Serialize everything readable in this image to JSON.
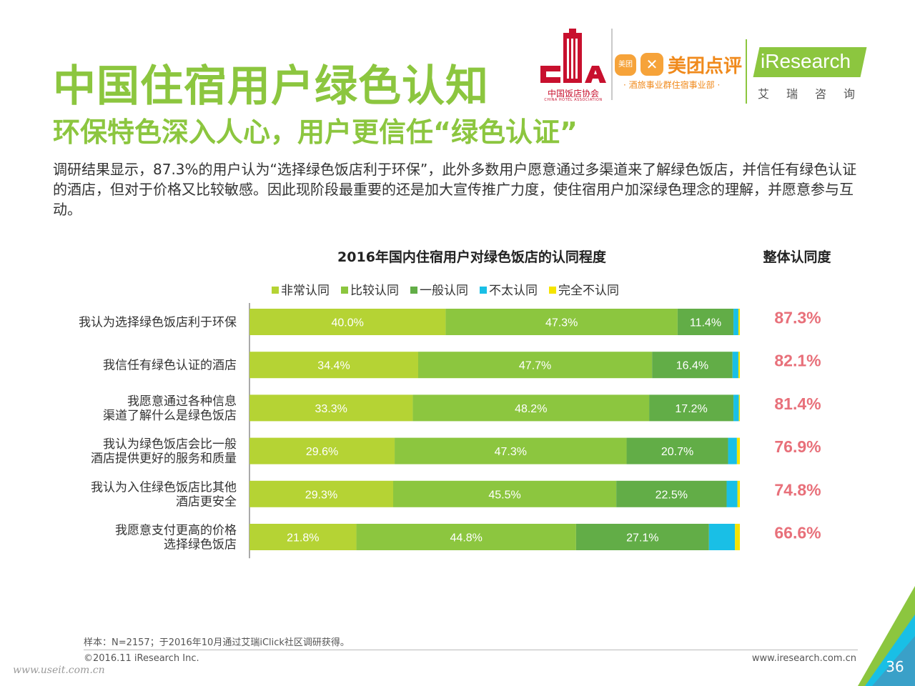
{
  "header": {
    "title": "中国住宿用户绿色认知",
    "subtitle": "环保特色深入人心，用户更信任“绿色认证”",
    "body": "调研结果显示，87.3%的用户认为“选择绿色饭店利于环保”，此外多数用户愿意通过多渠道来了解绿色饭店，并信任有绿色认证的酒店，但对于价格又比较敏感。因此现阶段最重要的还是加大宣传推广力度，使住宿用户加深绿色理念的理解，并愿意参与互动。"
  },
  "logos": {
    "cha": {
      "name": "中国饭店协会",
      "sub": "CHINA HOTEL ASSOCIATION"
    },
    "meituan": {
      "icon1": "美团",
      "name": "美团点评",
      "sub": "· 酒旅事业群住宿事业部 ·"
    },
    "iresearch": {
      "name": "iResearch",
      "sub": "艾瑞咨询"
    }
  },
  "chart_data": {
    "type": "bar",
    "orientation": "horizontal-stacked-100",
    "title": "2016年国内住宿用户对绿色饭店的认同程度",
    "overall_title": "整体认同度",
    "legend_position": "top",
    "categories": [
      [
        "我认为选择绿色饭店利于环保"
      ],
      [
        "我信任有绿色认证的酒店"
      ],
      [
        "我愿意通过各种信息",
        "渠道了解什么是绿色饭店"
      ],
      [
        "我认为绿色饭店会比一般",
        "酒店提供更好的服务和质量"
      ],
      [
        "我认为入住绿色饭店比其他",
        "酒店更安全"
      ],
      [
        "我愿意支付更高的价格",
        "选择绿色饭店"
      ]
    ],
    "series": [
      {
        "name": "非常认同",
        "color": "#b5d334",
        "values": [
          40.0,
          34.4,
          33.3,
          29.6,
          29.3,
          21.8
        ]
      },
      {
        "name": "比较认同",
        "color": "#8cc63f",
        "values": [
          47.3,
          47.7,
          48.2,
          47.3,
          45.5,
          44.8
        ]
      },
      {
        "name": "一般认同",
        "color": "#62ad47",
        "values": [
          11.4,
          16.4,
          17.2,
          20.7,
          22.5,
          27.1
        ]
      },
      {
        "name": "不太认同",
        "color": "#19bfe6",
        "values": [
          1.0,
          1.2,
          1.1,
          1.8,
          2.2,
          5.3
        ]
      },
      {
        "name": "完全不认同",
        "color": "#f5e400",
        "values": [
          0.3,
          0.3,
          0.2,
          0.6,
          0.5,
          1.0
        ]
      }
    ],
    "labels": [
      [
        "40.0%",
        "47.3%",
        "11.4%"
      ],
      [
        "34.4%",
        "47.7%",
        "16.4%"
      ],
      [
        "33.3%",
        "48.2%",
        "17.2%"
      ],
      [
        "29.6%",
        "47.3%",
        "20.7%"
      ],
      [
        "29.3%",
        "45.5%",
        "22.5%"
      ],
      [
        "21.8%",
        "44.8%",
        "27.1%"
      ]
    ],
    "overall": [
      "87.3%",
      "82.1%",
      "81.4%",
      "76.9%",
      "74.8%",
      "66.6%"
    ],
    "overall_color": "#e8707a",
    "xlim": [
      0,
      100
    ]
  },
  "footer": {
    "note": "样本：N=2157；于2016年10月通过艾瑞iClick社区调研获得。",
    "copyright": "©2016.11 iResearch Inc.",
    "website": "www.iresearch.com.cn",
    "watermark": "www.useit.com.cn",
    "page": "36"
  }
}
